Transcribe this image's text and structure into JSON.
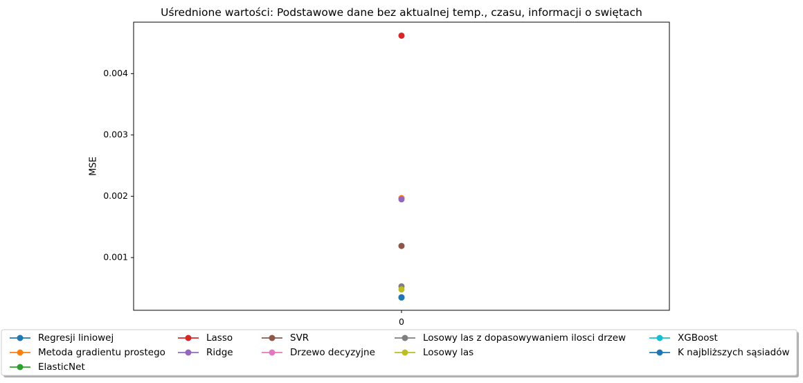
{
  "chart_data": {
    "type": "scatter",
    "title": "Uśrednione wartości: Podstawowe dane bez aktualnej temp., czasu, informacji o swiętach",
    "xlabel": "",
    "ylabel": "MSE",
    "x_ticks": [
      "0"
    ],
    "y_ticks": [
      "0.001",
      "0.002",
      "0.003",
      "0.004"
    ],
    "xlim": [
      -0.055,
      0.055
    ],
    "ylim": [
      0.00014,
      0.00484
    ],
    "grid": false,
    "legend_position": "below",
    "legend_columns": 5,
    "series": [
      {
        "name": "Regresji liniowej",
        "color": "#1f77b4",
        "x": [
          0
        ],
        "y": [
          0.00035
        ]
      },
      {
        "name": "Metoda gradientu prostego",
        "color": "#ff7f0e",
        "x": [
          0
        ],
        "y": [
          0.00197
        ]
      },
      {
        "name": "ElasticNet",
        "color": "#2ca02c",
        "x": [
          0
        ],
        "y": [
          0.00035
        ]
      },
      {
        "name": "Lasso",
        "color": "#d62728",
        "x": [
          0
        ],
        "y": [
          0.00462
        ]
      },
      {
        "name": "Ridge",
        "color": "#9467bd",
        "x": [
          0
        ],
        "y": [
          0.00195
        ]
      },
      {
        "name": "SVR",
        "color": "#8c564b",
        "x": [
          0
        ],
        "y": [
          0.00119
        ]
      },
      {
        "name": "Drzewo decyzyjne",
        "color": "#e377c2",
        "x": [
          0
        ],
        "y": [
          0.00035
        ]
      },
      {
        "name": "Losowy las z dopasowywaniem ilosci drzew",
        "color": "#7f7f7f",
        "x": [
          0
        ],
        "y": [
          0.00053
        ]
      },
      {
        "name": "Losowy las",
        "color": "#bcbd22",
        "x": [
          0
        ],
        "y": [
          0.00048
        ]
      },
      {
        "name": "XGBoost",
        "color": "#17becf",
        "x": [
          0
        ],
        "y": [
          0.00035
        ]
      },
      {
        "name": "K najbliższych sąsiadów",
        "color": "#1f77b4",
        "x": [
          0
        ],
        "y": [
          0.00035
        ]
      }
    ]
  }
}
